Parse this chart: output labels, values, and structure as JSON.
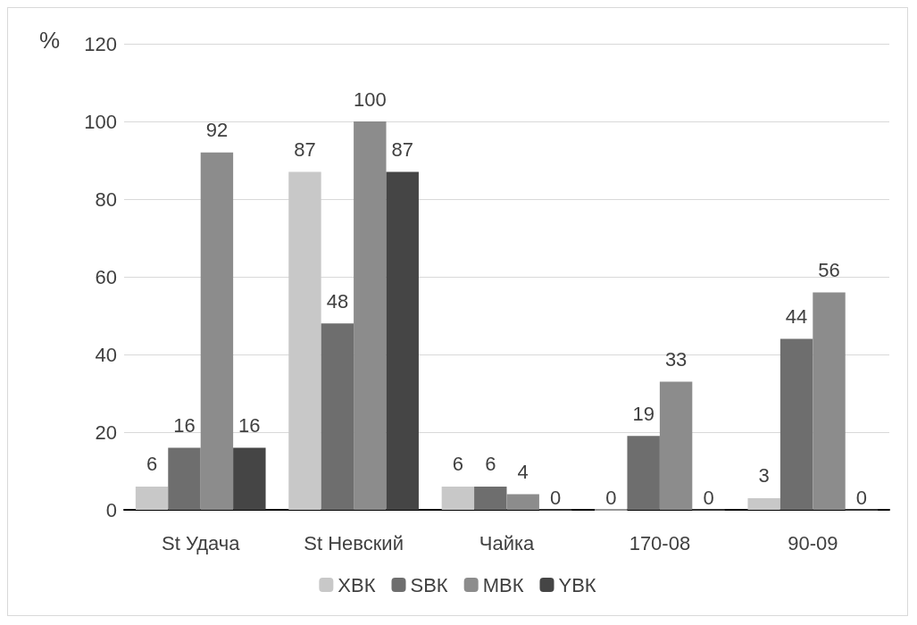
{
  "chart_data": {
    "type": "bar",
    "ylabel": "%",
    "categories": [
      "St Удача",
      "St Невский",
      "Чайка",
      "170-08",
      "90-09"
    ],
    "series": [
      {
        "name": "ХВК",
        "color": "#c8c8c8",
        "values": [
          6,
          87,
          6,
          0,
          3
        ]
      },
      {
        "name": "SВК",
        "color": "#6e6e6e",
        "values": [
          16,
          48,
          6,
          19,
          44
        ]
      },
      {
        "name": "МВК",
        "color": "#8c8c8c",
        "values": [
          92,
          100,
          4,
          33,
          56
        ]
      },
      {
        "name": "YВК",
        "color": "#454545",
        "values": [
          16,
          87,
          0,
          0,
          0
        ]
      }
    ],
    "ylim": [
      0,
      120
    ],
    "yticks": [
      0,
      20,
      40,
      60,
      80,
      100,
      120
    ],
    "grid": "y",
    "legend": "bottom",
    "data_labels": true
  }
}
